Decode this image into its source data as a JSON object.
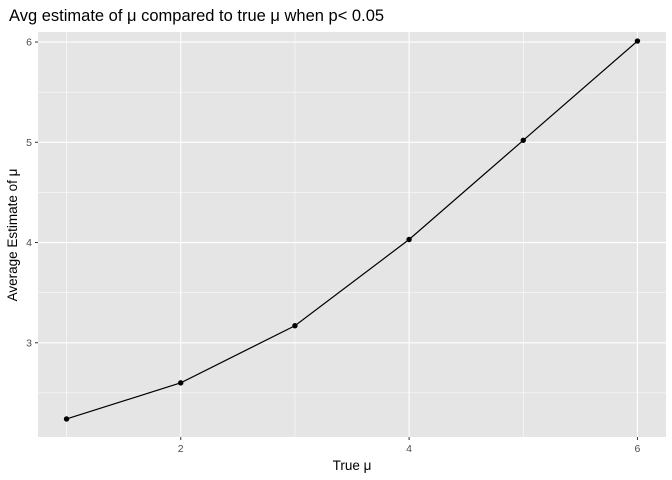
{
  "chart_data": {
    "type": "line",
    "title": "Avg estimate of μ compared to true μ when p< 0.05",
    "xlabel": "True μ",
    "ylabel": "Average Estimate of μ",
    "x": [
      1,
      2,
      3,
      4,
      5,
      6
    ],
    "series": [
      {
        "values": [
          2.24,
          2.6,
          3.17,
          4.03,
          5.02,
          6.01
        ]
      }
    ],
    "xlim": [
      0.75,
      6.25
    ],
    "ylim": [
      2.06,
      6.1
    ],
    "xticks": [
      2,
      4,
      6
    ],
    "xtick_labels": [
      "2",
      "4",
      "6"
    ],
    "yticks": [
      3,
      4,
      5,
      6
    ],
    "ytick_labels": [
      "3",
      "4",
      "5",
      "6"
    ],
    "grid": true,
    "markers": true,
    "colors": {
      "panel_background": "#e5e5e5",
      "grid_major": "#ffffff",
      "line": "#000000",
      "tick_label": "#4d4d4d"
    }
  }
}
